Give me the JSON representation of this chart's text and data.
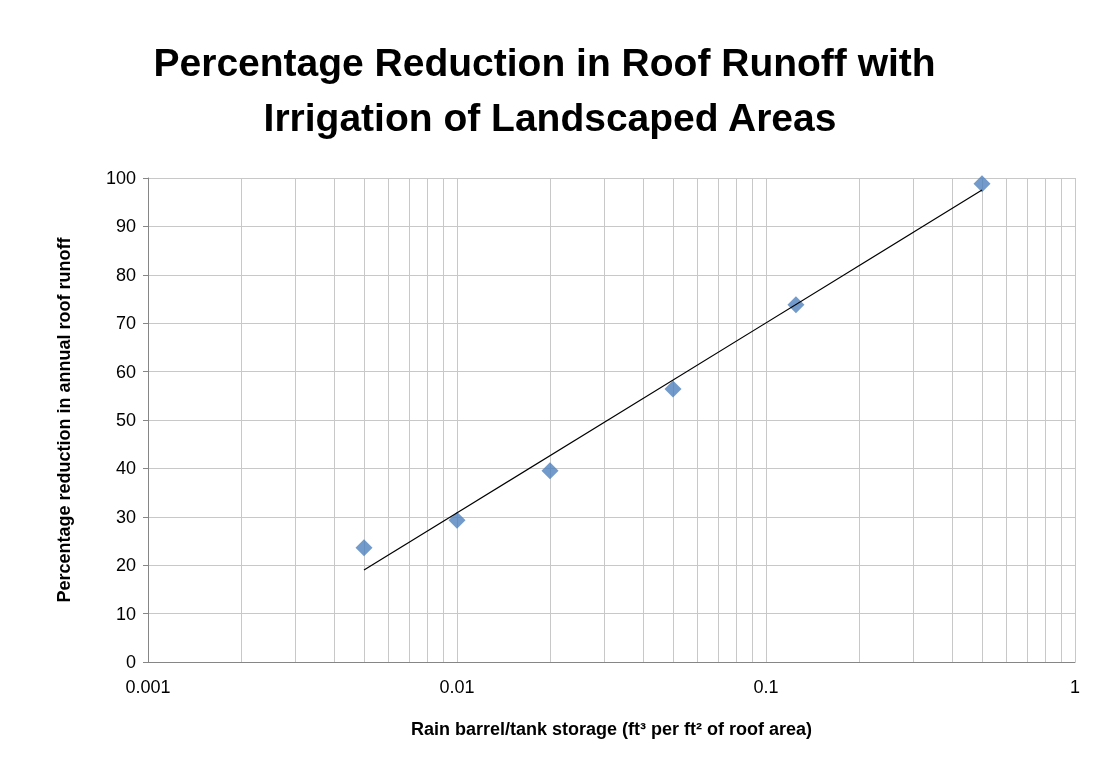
{
  "chart_data": {
    "type": "scatter",
    "title": "Percentage Reduction in Roof Runoff with Irrigation of Landscaped Areas",
    "xlabel": "Rain barrel/tank storage (ft³ per ft² of roof area)",
    "ylabel": "Percentage reduction in annual roof runoff",
    "x": [
      0.005,
      0.01,
      0.02,
      0.05,
      0.125,
      0.5
    ],
    "series": [
      {
        "color": "#4f81bd",
        "marker": "diamond",
        "values": [
          23.6,
          29.3,
          39.5,
          56.4,
          73.8,
          98.8
        ]
      },
      {
        "type": "line",
        "color": "#000000",
        "marker": "none",
        "x": [
          0.005,
          0.5
        ],
        "values": [
          19,
          97.5
        ]
      }
    ],
    "log": "x",
    "xlim": [
      0.001,
      1
    ],
    "xticks": [
      0.001,
      0.01,
      0.1,
      1
    ],
    "ylim": [
      0,
      100
    ],
    "yticks": [
      0,
      10,
      20,
      30,
      40,
      50,
      60,
      70,
      80,
      90,
      100
    ],
    "grid": true
  }
}
